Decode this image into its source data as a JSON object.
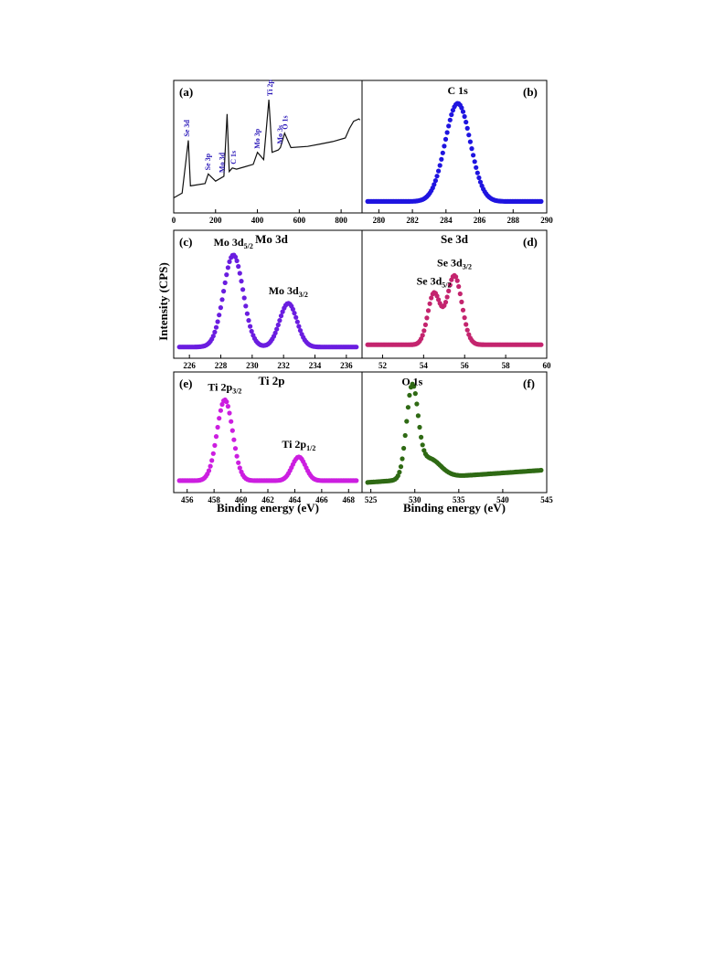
{
  "figure": {
    "ylabel": "Intensity (CPS)",
    "xlabel": "Binding energy (eV)"
  },
  "chart_data": [
    {
      "id": "a",
      "panel_label": "(a)",
      "type": "line",
      "title": "",
      "xlim": [
        0,
        900
      ],
      "xticks": [
        0,
        200,
        400,
        600,
        800
      ],
      "color": "#111111",
      "series": [
        {
          "x": [
            0,
            40,
            70,
            80,
            150,
            165,
            200,
            240,
            255,
            265,
            280,
            300,
            340,
            380,
            400,
            430,
            455,
            470,
            500,
            510,
            530,
            560,
            640,
            700,
            760,
            820,
            840,
            860,
            885,
            890
          ],
          "y": [
            0.08,
            0.12,
            0.56,
            0.18,
            0.2,
            0.28,
            0.22,
            0.26,
            0.78,
            0.3,
            0.33,
            0.32,
            0.34,
            0.36,
            0.46,
            0.4,
            0.9,
            0.46,
            0.48,
            0.5,
            0.62,
            0.5,
            0.51,
            0.53,
            0.55,
            0.58,
            0.66,
            0.72,
            0.74,
            0.73
          ]
        }
      ],
      "annotations": [
        {
          "text": "Se 3d",
          "x": 62
        },
        {
          "text": "Se 3p",
          "x": 162
        },
        {
          "text": "Mo 3d",
          "x": 230
        },
        {
          "text": "C 1s",
          "x": 285
        },
        {
          "text": "Mo 3p",
          "x": 398
        },
        {
          "text": "Ti 2p",
          "x": 458
        },
        {
          "text": "Mo 3s",
          "x": 506
        },
        {
          "text": "O 1s",
          "x": 531
        }
      ]
    },
    {
      "id": "b",
      "panel_label": "(b)",
      "type": "scatter",
      "title": "",
      "xlim": [
        279,
        290
      ],
      "xticks": [
        280,
        282,
        284,
        286,
        288,
        290
      ],
      "color": "#1f14e0",
      "peaks": [
        {
          "label": "C 1s",
          "center": 284.7,
          "width": 0.75,
          "height": 0.82
        }
      ],
      "baseline": 0.05
    },
    {
      "id": "c",
      "panel_label": "(c)",
      "type": "scatter",
      "title": "Mo 3d",
      "xlim": [
        225,
        237
      ],
      "xticks": [
        226,
        228,
        230,
        232,
        234,
        236
      ],
      "color": "#6a1de0",
      "peaks": [
        {
          "label": "Mo 3d",
          "sub": "5/2",
          "center": 228.8,
          "width": 0.62,
          "height": 0.8
        },
        {
          "label": "Mo 3d",
          "sub": "3/2",
          "center": 232.3,
          "width": 0.55,
          "height": 0.38
        }
      ],
      "baseline": 0.05
    },
    {
      "id": "d",
      "panel_label": "(d)",
      "type": "scatter",
      "title": "Se 3d",
      "xlim": [
        51,
        60
      ],
      "xticks": [
        52,
        54,
        56,
        58,
        60
      ],
      "color": "#c4246e",
      "peaks": [
        {
          "label": "Se 3d",
          "sub": "5/2",
          "center": 54.5,
          "width": 0.3,
          "height": 0.44
        },
        {
          "label": "Se 3d",
          "sub": "3/2",
          "center": 55.5,
          "width": 0.36,
          "height": 0.6
        }
      ],
      "baseline": 0.07
    },
    {
      "id": "e",
      "panel_label": "(e)",
      "type": "scatter",
      "title": "Ti 2p",
      "xlim": [
        455,
        469
      ],
      "xticks": [
        456,
        458,
        460,
        462,
        464,
        466,
        468
      ],
      "color": "#cc1ee0",
      "peaks": [
        {
          "label": "Ti 2p",
          "sub": "3/2",
          "center": 458.8,
          "width": 0.58,
          "height": 0.75
        },
        {
          "label": "Ti 2p",
          "sub": "1/2",
          "center": 464.3,
          "width": 0.5,
          "height": 0.22
        }
      ],
      "baseline": 0.06
    },
    {
      "id": "f",
      "panel_label": "(f)",
      "type": "scatter",
      "title": "",
      "xlim": [
        524,
        545
      ],
      "xticks": [
        525,
        530,
        535,
        540,
        545
      ],
      "color": "#2f6a14",
      "peaks": [
        {
          "label": "O 1s",
          "center": 529.7,
          "width": 0.65,
          "height": 0.82
        },
        {
          "center": 531.6,
          "width": 1.3,
          "height": 0.18
        }
      ],
      "baseline": 0.04,
      "slope_end": 0.12
    }
  ]
}
